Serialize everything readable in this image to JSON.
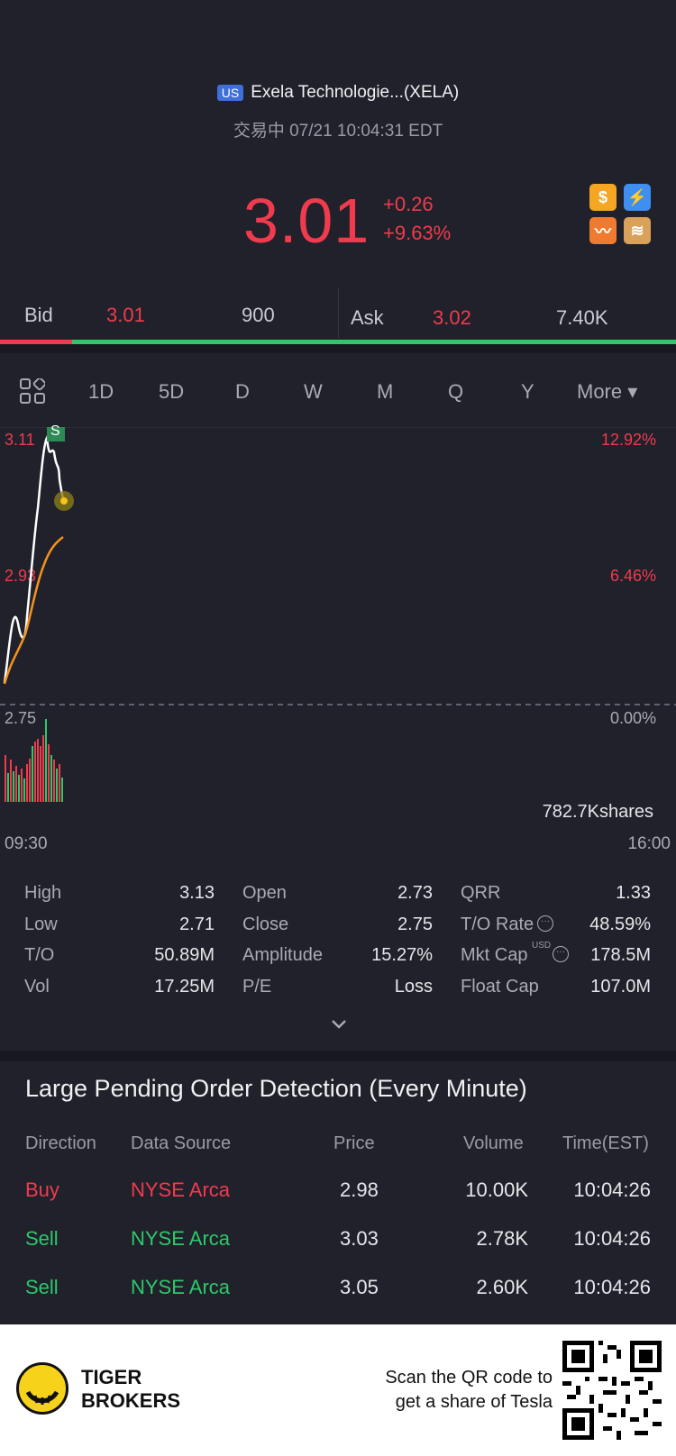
{
  "header": {
    "market_badge": "US",
    "stock_name": "Exela Technologie...(XELA)",
    "status": "交易中 07/21 10:04:31 EDT"
  },
  "quote": {
    "price": "3.01",
    "change": "+0.26",
    "change_pct": "+9.63%",
    "color_down": "#f03b4e",
    "color_up": "#2ec86b"
  },
  "badges": [
    "dollar-icon",
    "lightning-level1-icon",
    "trend-icon",
    "education-icon"
  ],
  "bidask": {
    "bid_label": "Bid",
    "bid_price": "3.01",
    "bid_size": "900",
    "ask_label": "Ask",
    "ask_price": "3.02",
    "ask_size": "7.40K"
  },
  "tabs": {
    "items": [
      "1D",
      "5D",
      "D",
      "W",
      "M",
      "Q",
      "Y"
    ],
    "active": "1D",
    "more": "More ▾"
  },
  "chart": {
    "high_label": "3.11",
    "high_pct": "12.92%",
    "mid_label": "2.93",
    "mid_pct": "6.46%",
    "base_label": "2.75",
    "base_pct": "0.00%",
    "marker": "S",
    "volume_label": "782.7Kshares",
    "time_start": "09:30",
    "time_end": "16:00"
  },
  "stats": [
    {
      "label": "High",
      "value": "3.13"
    },
    {
      "label": "Open",
      "value": "2.73"
    },
    {
      "label": "QRR",
      "value": "1.33"
    },
    {
      "label": "Low",
      "value": "2.71"
    },
    {
      "label": "Close",
      "value": "2.75"
    },
    {
      "label": "T/O Rate",
      "value": "48.59%"
    },
    {
      "label": "T/O",
      "value": "50.89M"
    },
    {
      "label": "Amplitude",
      "value": "15.27%"
    },
    {
      "label": "Mkt Cap",
      "value": "178.5M",
      "sup": "USD"
    },
    {
      "label": "Vol",
      "value": "17.25M"
    },
    {
      "label": "P/E",
      "value": "Loss"
    },
    {
      "label": "Float Cap",
      "value": "107.0M"
    }
  ],
  "large_orders": {
    "title": "Large Pending Order Detection (Every Minute)",
    "headers": [
      "Direction",
      "Data Source",
      "Price",
      "Volume",
      "Time(EST)"
    ],
    "rows": [
      {
        "direction": "Buy",
        "source": "NYSE Arca",
        "price": "2.98",
        "volume": "10.00K",
        "time": "10:04:26"
      },
      {
        "direction": "Sell",
        "source": "NYSE Arca",
        "price": "3.03",
        "volume": "2.78K",
        "time": "10:04:26"
      },
      {
        "direction": "Sell",
        "source": "NYSE Arca",
        "price": "3.05",
        "volume": "2.60K",
        "time": "10:04:26"
      }
    ]
  },
  "footer": {
    "brand_line1": "TIGER",
    "brand_line2": "BROKERS",
    "promo_line1": "Scan the QR code to",
    "promo_line2": "get a share of Tesla"
  }
}
